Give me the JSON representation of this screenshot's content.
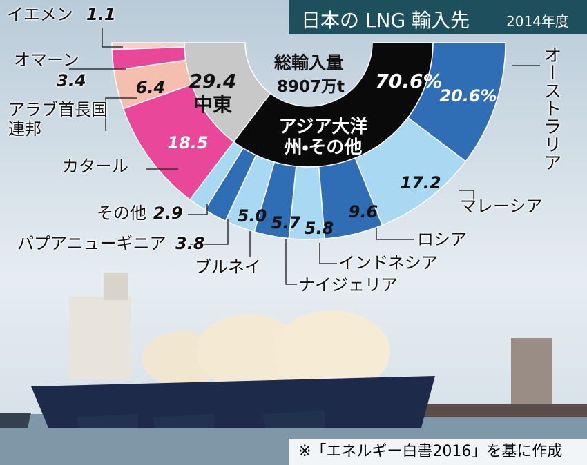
{
  "chart_data": {
    "type": "donut",
    "title": "日本の LNG 輸入先",
    "subtitle": "2014年度",
    "center_label": "総輸入量",
    "center_value": "8907万t",
    "note": "※「エネルギー白書2016」を基に作成",
    "series": [
      {
        "categories": [
          "中東",
          "アジア大洋州・その他"
        ],
        "values": [
          29.4,
          70.6
        ],
        "value_labels": [
          "29.4",
          "70.6%"
        ],
        "colors": [
          "#c8c8c8",
          "#0a0a0a"
        ]
      },
      {
        "categories": [
          "イエメン",
          "オマーン",
          "アラブ首長国連邦",
          "カタール",
          "その他",
          "パプアニューギニア",
          "ブルネイ",
          "ナイジェリア",
          "インドネシア",
          "ロシア",
          "マレーシア",
          "オーストラリア"
        ],
        "values": [
          1.1,
          3.4,
          6.4,
          18.5,
          2.9,
          3.8,
          5.0,
          5.7,
          5.8,
          9.6,
          17.2,
          20.6
        ],
        "value_labels": [
          "1.1",
          "3.4",
          "6.4",
          "18.5",
          "2.9",
          "3.8",
          "5.0",
          "5.7",
          "5.8",
          "9.6",
          "17.2",
          "20.6%"
        ],
        "colors": [
          "#f6cfc8",
          "#e8479a",
          "#f5bfb0",
          "#e8479a",
          "#a8d8f2",
          "#2f6db5",
          "#a8d8f2",
          "#2f6db5",
          "#a8d8f2",
          "#2f6db5",
          "#a8d8f2",
          "#2f6db5"
        ]
      }
    ]
  }
}
